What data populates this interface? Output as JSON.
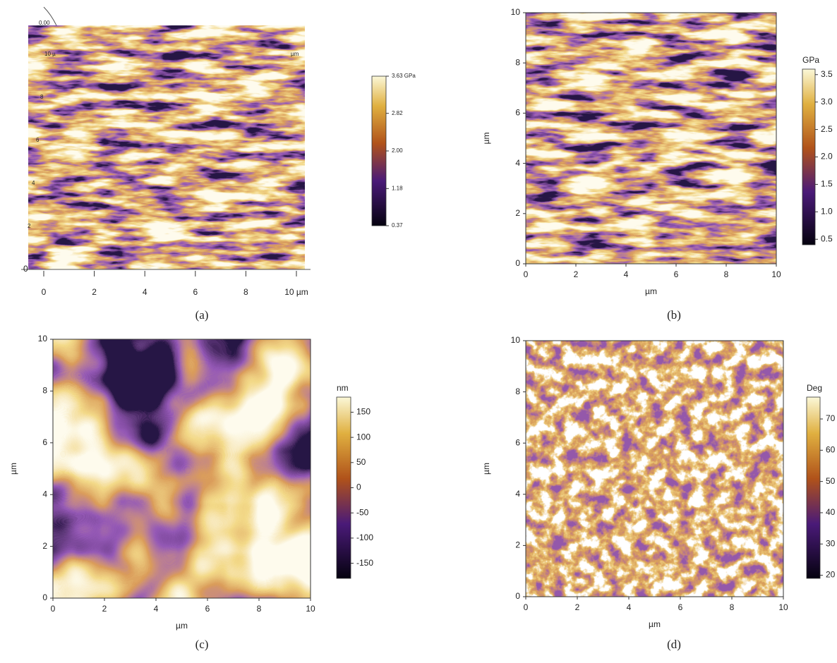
{
  "panels": [
    {
      "caption": "(a)",
      "top_label": "0.00",
      "corner_label": "µm",
      "xlim": [
        0,
        10
      ],
      "xticks": [
        0,
        2,
        4,
        6,
        8,
        {
          "value": 10,
          "label": "10 µm"
        }
      ],
      "yticks": [
        0,
        2,
        4,
        6,
        8,
        {
          "value": 10,
          "label": "10 µ"
        }
      ],
      "colorbar": {
        "lim": [
          0.37,
          3.63
        ],
        "ticks": [
          {
            "value": 3.63,
            "label": "3.63 GPa"
          },
          2.82,
          {
            "value": 2,
            "label": "2.00"
          },
          1.18,
          0.37
        ]
      }
    },
    {
      "caption": "(b)",
      "xlabel": "µm",
      "ylabel": "µm",
      "xlim": [
        0,
        10
      ],
      "ylim": [
        0,
        10
      ],
      "xticks": [
        0,
        2,
        4,
        6,
        8,
        10
      ],
      "yticks": [
        0,
        2,
        4,
        6,
        8,
        10
      ],
      "colorbar": {
        "label": "GPa",
        "lim": [
          0.4,
          3.6
        ],
        "ticks": [
          0.5,
          {
            "value": 1,
            "label": "1.0"
          },
          1.5,
          {
            "value": 2,
            "label": "2.0"
          },
          2.5,
          {
            "value": 3,
            "label": "3.0"
          },
          3.5
        ]
      }
    },
    {
      "caption": "(c)",
      "xlabel": "µm",
      "ylabel": "µm",
      "xlim": [
        0,
        10
      ],
      "ylim": [
        0,
        10
      ],
      "xticks": [
        0,
        2,
        4,
        6,
        8,
        10
      ],
      "yticks": [
        0,
        2,
        4,
        6,
        8,
        10
      ],
      "colorbar": {
        "label": "nm",
        "lim": [
          -180,
          180
        ],
        "ticks": [
          -150,
          -100,
          -50,
          0,
          50,
          100,
          150
        ]
      }
    },
    {
      "caption": "(d)",
      "xlabel": "µm",
      "ylabel": "µm",
      "xlim": [
        0,
        10
      ],
      "ylim": [
        0,
        10
      ],
      "xticks": [
        0,
        2,
        4,
        6,
        8,
        10
      ],
      "yticks": [
        0,
        2,
        4,
        6,
        8,
        10
      ],
      "colorbar": {
        "label": "Deg",
        "lim": [
          19,
          77
        ],
        "ticks": [
          20,
          30,
          40,
          50,
          60,
          70
        ]
      }
    }
  ]
}
